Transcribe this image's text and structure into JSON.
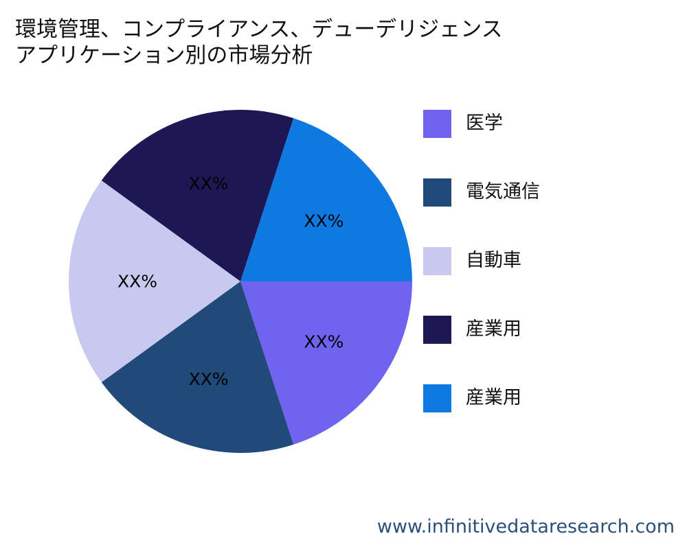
{
  "title": {
    "line1": "環境管理、コンプライアンス、デューデリジェンス",
    "line2": "アプリケーション別の市場分析"
  },
  "chart_data": {
    "type": "pie",
    "title": "環境管理、コンプライアンス、デューデリジェンス アプリケーション別の市場分析",
    "categories": [
      "医学",
      "電気通信",
      "自動車",
      "産業用",
      "産業用"
    ],
    "values": [
      20,
      20,
      20,
      20,
      20
    ],
    "value_labels": [
      "XX%",
      "XX%",
      "XX%",
      "XX%",
      "XX%"
    ],
    "colors": [
      "#7063f0",
      "#1f4a79",
      "#c8c9ee",
      "#1d1754",
      "#0f79e2"
    ],
    "start_angle_deg": 0,
    "direction": "clockwise",
    "legend_position": "right"
  },
  "legend": {
    "items": [
      {
        "label": "医学",
        "color": "#7063f0"
      },
      {
        "label": "電気通信",
        "color": "#1f4a79"
      },
      {
        "label": "自動車",
        "color": "#c8c9ee"
      },
      {
        "label": "産業用",
        "color": "#1d1754"
      },
      {
        "label": "産業用",
        "color": "#0f79e2"
      }
    ]
  },
  "watermark": "www.infinitivedataresearch.com"
}
